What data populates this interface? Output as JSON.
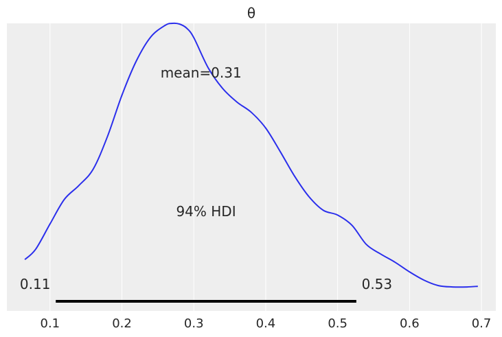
{
  "chart_data": {
    "type": "line",
    "title": "θ",
    "xlabel": "",
    "ylabel": "",
    "xlim": [
      0.04,
      0.72
    ],
    "ylim": [
      -0.35,
      3.85
    ],
    "xticks": [
      0.1,
      0.2,
      0.3,
      0.4,
      0.5,
      0.6,
      0.7
    ],
    "xtick_labels": [
      "0.1",
      "0.2",
      "0.3",
      "0.4",
      "0.5",
      "0.6",
      "0.7"
    ],
    "grid": true,
    "background_color": "#eeeeee",
    "line_color": "#2a2eec",
    "hdi_color": "#000000",
    "mean_label": "mean=0.31",
    "hdi_label": "94% HDI",
    "hdi": {
      "low": 0.108,
      "high": 0.526,
      "low_label": "0.11",
      "high_label": "0.53"
    },
    "series": [
      {
        "x": [
          0.065,
          0.08,
          0.1,
          0.12,
          0.14,
          0.16,
          0.18,
          0.2,
          0.22,
          0.24,
          0.26,
          0.27,
          0.28,
          0.29,
          0.3,
          0.32,
          0.34,
          0.36,
          0.38,
          0.4,
          0.42,
          0.44,
          0.46,
          0.48,
          0.5,
          0.52,
          0.54,
          0.56,
          0.58,
          0.6,
          0.62,
          0.64,
          0.66,
          0.68,
          0.695
        ],
        "y": [
          0.4,
          0.55,
          0.92,
          1.28,
          1.48,
          1.72,
          2.2,
          2.8,
          3.3,
          3.65,
          3.82,
          3.85,
          3.84,
          3.78,
          3.64,
          3.2,
          2.9,
          2.7,
          2.55,
          2.32,
          1.98,
          1.62,
          1.32,
          1.12,
          1.05,
          0.9,
          0.62,
          0.48,
          0.36,
          0.22,
          0.1,
          0.02,
          0.0,
          0.0,
          0.01
        ]
      }
    ]
  }
}
